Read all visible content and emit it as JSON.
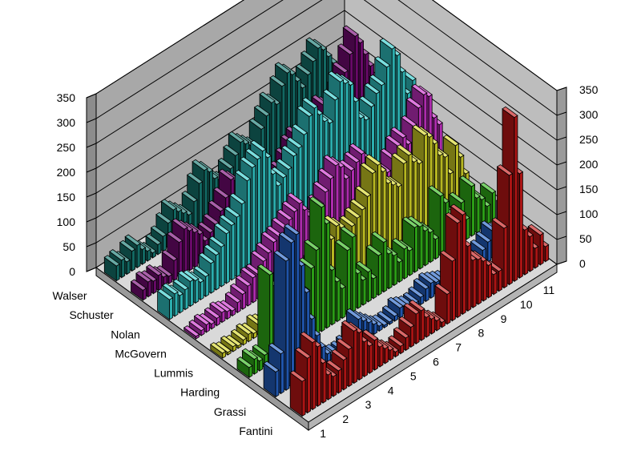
{
  "chart_data": {
    "type": "bar",
    "subtype": "3d-column",
    "title": "",
    "xlabel": "",
    "ylabel": "",
    "zlim": [
      0,
      350
    ],
    "z_ticks": [
      "0",
      "50",
      "100",
      "150",
      "200",
      "250",
      "300",
      "350"
    ],
    "depth_ticks": [
      "1",
      "2",
      "3",
      "4",
      "5",
      "6",
      "7",
      "8",
      "9",
      "10",
      "11"
    ],
    "grid": true,
    "legend": "none",
    "series": [
      {
        "name": "Fantini",
        "color": "#c81818",
        "values": [
          70,
          110,
          135,
          120,
          80,
          50,
          40,
          45,
          60,
          75,
          105,
          95,
          70,
          55,
          60,
          40,
          30,
          20,
          10,
          15,
          25,
          40,
          60,
          60,
          40,
          30,
          20,
          10,
          60,
          120,
          190,
          200,
          130,
          95,
          90,
          80,
          65,
          40,
          40,
          120,
          220,
          330,
          210,
          90,
          70,
          40,
          60,
          30
        ]
      },
      {
        "name": "Grassi",
        "color": "#2563c8",
        "values": [
          50,
          80,
          260,
          290,
          300,
          230,
          170,
          110,
          70,
          40,
          20,
          10,
          5,
          5,
          10,
          25,
          50,
          40,
          30,
          20,
          10,
          5,
          5,
          10,
          20,
          15,
          10,
          10,
          15,
          25,
          30,
          25,
          20,
          15,
          10,
          15,
          30,
          45,
          30,
          20,
          30,
          40,
          55,
          45,
          25,
          80,
          60,
          40
        ]
      },
      {
        "name": "Harding",
        "color": "#33b81a",
        "values": [
          20,
          30,
          20,
          25,
          180,
          150,
          30,
          15,
          50,
          70,
          90,
          100,
          140,
          170,
          250,
          210,
          110,
          80,
          60,
          130,
          150,
          70,
          50,
          60,
          40,
          80,
          100,
          70,
          60,
          40,
          60,
          50,
          90,
          85,
          70,
          60,
          40,
          120,
          100,
          70,
          60,
          80,
          40,
          100,
          70,
          60,
          40,
          60
        ]
      },
      {
        "name": "Lummis",
        "color": "#d6d627",
        "values": [
          10,
          5,
          10,
          5,
          10,
          15,
          10,
          20,
          15,
          10,
          10,
          15,
          20,
          25,
          30,
          35,
          40,
          60,
          70,
          50,
          60,
          100,
          120,
          110,
          90,
          100,
          110,
          120,
          140,
          180,
          190,
          170,
          140,
          130,
          120,
          160,
          170,
          150,
          140,
          190,
          180,
          160,
          130,
          120,
          80,
          130,
          100,
          60
        ]
      },
      {
        "name": "McGovern",
        "color": "#cc33cc",
        "values": [
          5,
          10,
          15,
          10,
          15,
          20,
          15,
          10,
          20,
          30,
          40,
          50,
          50,
          70,
          80,
          95,
          100,
          110,
          120,
          130,
          140,
          120,
          100,
          90,
          110,
          130,
          150,
          170,
          160,
          130,
          140,
          150,
          160,
          120,
          130,
          110,
          100,
          90,
          110,
          130,
          140,
          120,
          150,
          180,
          200,
          190,
          140,
          120
        ]
      },
      {
        "name": "Nolan",
        "color": "#33cccc",
        "values": [
          40,
          45,
          35,
          40,
          50,
          45,
          35,
          40,
          60,
          70,
          80,
          100,
          110,
          120,
          140,
          180,
          200,
          210,
          220,
          200,
          160,
          130,
          140,
          150,
          170,
          180,
          200,
          230,
          240,
          220,
          200,
          190,
          230,
          260,
          250,
          240,
          200,
          160,
          150,
          170,
          190,
          200,
          230,
          260,
          240,
          200,
          150,
          170
        ]
      },
      {
        "name": "Schuster",
        "color": "#7a0a7a",
        "values": [
          20,
          30,
          25,
          30,
          20,
          15,
          40,
          70,
          90,
          80,
          70,
          60,
          40,
          50,
          60,
          80,
          100,
          130,
          120,
          90,
          70,
          60,
          80,
          100,
          90,
          60,
          70,
          80,
          100,
          120,
          130,
          110,
          100,
          120,
          140,
          160,
          150,
          130,
          170,
          200,
          230,
          260,
          240,
          210,
          180,
          150,
          120,
          100
        ]
      },
      {
        "name": "Walser",
        "color": "#157a73",
        "values": [
          30,
          35,
          25,
          40,
          45,
          30,
          20,
          10,
          20,
          30,
          50,
          70,
          60,
          50,
          40,
          60,
          90,
          110,
          100,
          80,
          70,
          60,
          80,
          100,
          120,
          110,
          100,
          90,
          120,
          140,
          160,
          150,
          180,
          200,
          190,
          170,
          150,
          170,
          190,
          210,
          200,
          180,
          160,
          140,
          120,
          100,
          130,
          150
        ]
      }
    ]
  }
}
